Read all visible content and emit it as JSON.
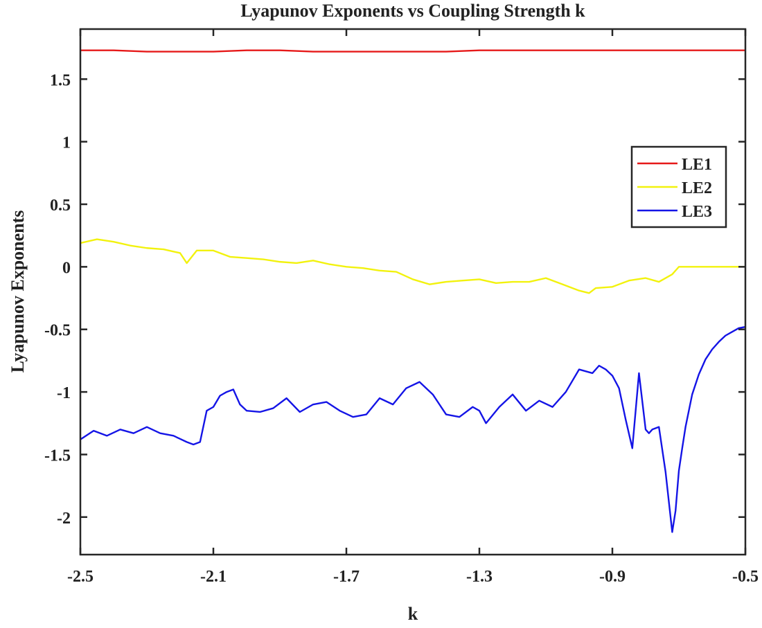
{
  "chart_data": {
    "type": "line",
    "title": "Lyapunov Exponents vs Coupling Strength k",
    "xlabel": "k",
    "ylabel": "Lyapunov Exponents",
    "xlim": [
      -2.5,
      -0.5
    ],
    "ylim": [
      -2.3,
      1.9
    ],
    "xticks": [
      -2.5,
      -2.1,
      -1.7,
      -1.3,
      -0.9,
      -0.5
    ],
    "xtick_labels": [
      "-2.5",
      "-2.1",
      "-1.7",
      "-1.3",
      "-0.9",
      "-0.5"
    ],
    "yticks": [
      -2,
      -1.5,
      -1,
      -0.5,
      0,
      0.5,
      1,
      1.5
    ],
    "ytick_labels": [
      "-2",
      "-1.5",
      "-1",
      "-0.5",
      "0",
      "0.5",
      "1",
      "1.5"
    ],
    "grid": false,
    "legend_position": "right",
    "series": [
      {
        "name": "LE1",
        "color": "#e61919",
        "x": [
          -2.5,
          -2.4,
          -2.3,
          -2.2,
          -2.1,
          -2.0,
          -1.9,
          -1.8,
          -1.7,
          -1.6,
          -1.5,
          -1.4,
          -1.3,
          -1.2,
          -1.1,
          -1.0,
          -0.9,
          -0.8,
          -0.7,
          -0.6,
          -0.5
        ],
        "y": [
          1.73,
          1.73,
          1.72,
          1.72,
          1.72,
          1.73,
          1.73,
          1.72,
          1.72,
          1.72,
          1.72,
          1.72,
          1.73,
          1.73,
          1.73,
          1.73,
          1.73,
          1.73,
          1.73,
          1.73,
          1.73
        ]
      },
      {
        "name": "LE2",
        "color": "#f2f20d",
        "x": [
          -2.5,
          -2.45,
          -2.4,
          -2.35,
          -2.3,
          -2.25,
          -2.2,
          -2.18,
          -2.15,
          -2.1,
          -2.05,
          -2.0,
          -1.95,
          -1.9,
          -1.85,
          -1.8,
          -1.75,
          -1.7,
          -1.65,
          -1.6,
          -1.55,
          -1.5,
          -1.45,
          -1.4,
          -1.35,
          -1.3,
          -1.25,
          -1.2,
          -1.15,
          -1.1,
          -1.05,
          -1.0,
          -0.97,
          -0.95,
          -0.9,
          -0.85,
          -0.8,
          -0.76,
          -0.72,
          -0.7,
          -0.65,
          -0.6,
          -0.55,
          -0.5
        ],
        "y": [
          0.19,
          0.22,
          0.2,
          0.17,
          0.15,
          0.14,
          0.11,
          0.03,
          0.13,
          0.13,
          0.08,
          0.07,
          0.06,
          0.04,
          0.03,
          0.05,
          0.02,
          0.0,
          -0.01,
          -0.03,
          -0.04,
          -0.1,
          -0.14,
          -0.12,
          -0.11,
          -0.1,
          -0.13,
          -0.12,
          -0.12,
          -0.09,
          -0.14,
          -0.19,
          -0.21,
          -0.17,
          -0.16,
          -0.11,
          -0.09,
          -0.12,
          -0.06,
          0.0,
          0.0,
          0.0,
          0.0,
          0.0
        ]
      },
      {
        "name": "LE3",
        "color": "#1414e6",
        "x": [
          -2.5,
          -2.46,
          -2.42,
          -2.38,
          -2.34,
          -2.3,
          -2.26,
          -2.22,
          -2.18,
          -2.16,
          -2.14,
          -2.12,
          -2.1,
          -2.08,
          -2.06,
          -2.04,
          -2.02,
          -2.0,
          -1.96,
          -1.92,
          -1.88,
          -1.84,
          -1.8,
          -1.76,
          -1.72,
          -1.68,
          -1.64,
          -1.6,
          -1.56,
          -1.52,
          -1.48,
          -1.44,
          -1.42,
          -1.4,
          -1.36,
          -1.32,
          -1.3,
          -1.28,
          -1.24,
          -1.2,
          -1.16,
          -1.12,
          -1.08,
          -1.04,
          -1.0,
          -0.96,
          -0.94,
          -0.92,
          -0.9,
          -0.88,
          -0.86,
          -0.84,
          -0.82,
          -0.8,
          -0.79,
          -0.78,
          -0.76,
          -0.74,
          -0.72,
          -0.71,
          -0.7,
          -0.69,
          -0.68,
          -0.66,
          -0.64,
          -0.62,
          -0.6,
          -0.58,
          -0.56,
          -0.54,
          -0.52,
          -0.5
        ],
        "y": [
          -1.38,
          -1.31,
          -1.35,
          -1.3,
          -1.33,
          -1.28,
          -1.33,
          -1.35,
          -1.4,
          -1.42,
          -1.4,
          -1.15,
          -1.12,
          -1.03,
          -1.0,
          -0.98,
          -1.1,
          -1.15,
          -1.16,
          -1.13,
          -1.05,
          -1.16,
          -1.1,
          -1.08,
          -1.15,
          -1.2,
          -1.18,
          -1.05,
          -1.1,
          -0.97,
          -0.92,
          -1.02,
          -1.1,
          -1.18,
          -1.2,
          -1.12,
          -1.15,
          -1.25,
          -1.12,
          -1.02,
          -1.15,
          -1.07,
          -1.12,
          -1.0,
          -0.82,
          -0.85,
          -0.79,
          -0.82,
          -0.87,
          -0.97,
          -1.22,
          -1.45,
          -0.85,
          -1.3,
          -1.33,
          -1.3,
          -1.28,
          -1.64,
          -2.12,
          -1.95,
          -1.63,
          -1.45,
          -1.28,
          -1.02,
          -0.86,
          -0.74,
          -0.66,
          -0.6,
          -0.55,
          -0.52,
          -0.49,
          -0.48
        ]
      }
    ]
  }
}
